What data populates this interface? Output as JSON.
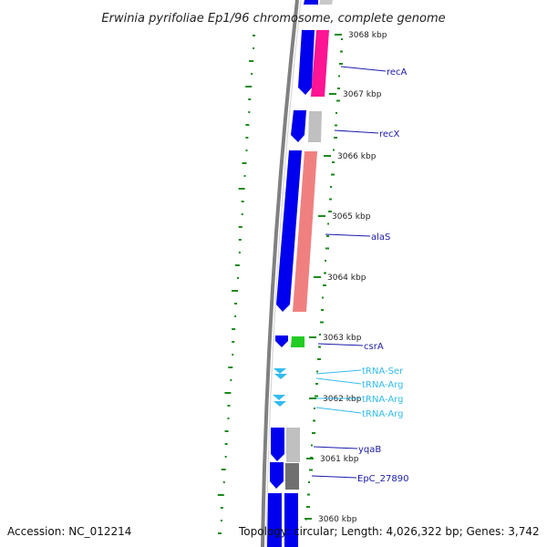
{
  "title": "Erwinia pyrifoliae Ep1/96 chromosome, complete genome",
  "footer": {
    "accession": "Accession: NC_012214",
    "topology": "Topology: circular; Length: 4,026,322 bp; Genes: 3,742"
  },
  "colors": {
    "forward_cds": "#0000ee",
    "cog_recA": "#ff1493",
    "cog_alaS": "#f08080",
    "cog_csrA": "#22cc22",
    "cog_gray": "#c0c0c0",
    "cog_dark": "#707070",
    "trna": "#33bbee",
    "gene_label": "#1a1aaa",
    "trna_label": "#33bbee",
    "gc_skew": "#1a8a1a",
    "backbone": "#808080"
  },
  "ticks": [
    {
      "label": "3068 kbp"
    },
    {
      "label": "3067 kbp"
    },
    {
      "label": "3066 kbp"
    },
    {
      "label": "3065 kbp"
    },
    {
      "label": "3064 kbp"
    },
    {
      "label": "3063 kbp"
    },
    {
      "label": "3062 kbp"
    },
    {
      "label": "3061 kbp"
    },
    {
      "label": "3060 kbp"
    }
  ],
  "genes": [
    {
      "name": "recA",
      "type": "cds"
    },
    {
      "name": "recX",
      "type": "cds"
    },
    {
      "name": "alaS",
      "type": "cds"
    },
    {
      "name": "csrA",
      "type": "cds"
    },
    {
      "name": "tRNA-Ser",
      "type": "trna"
    },
    {
      "name": "tRNA-Arg",
      "type": "trna"
    },
    {
      "name": "tRNA-Arg",
      "type": "trna"
    },
    {
      "name": "tRNA-Arg",
      "type": "trna"
    },
    {
      "name": "yqaB",
      "type": "cds"
    },
    {
      "name": "EpC_27890",
      "type": "cds"
    }
  ]
}
